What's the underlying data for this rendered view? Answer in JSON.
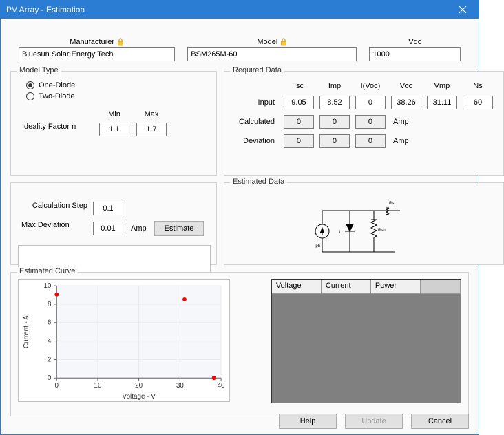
{
  "window": {
    "title": "PV Array - Estimation"
  },
  "top": {
    "manufacturer_label": "Manufacturer",
    "manufacturer": "Bluesun Solar Energy Tech",
    "model_label": "Model",
    "model": "BSM265M-60",
    "vdc_label": "Vdc",
    "vdc": "1000"
  },
  "modeltype": {
    "title": "Model Type",
    "one": "One-Diode",
    "two": "Two-Diode",
    "selected": "one",
    "min_label": "Min",
    "max_label": "Max",
    "ideality_label": "Ideality Factor n",
    "min": "1.1",
    "max": "1.7",
    "calcstep_label": "Calculation Step",
    "calcstep": "0.1",
    "maxdev_label": "Max Deviation",
    "maxdev": "0.01",
    "amp": "Amp",
    "estimate": "Estimate"
  },
  "required": {
    "title": "Required Data",
    "cols": {
      "isc": "Isc",
      "imp": "Imp",
      "ivoc": "I(Voc)",
      "voc": "Voc",
      "vmp": "Vmp",
      "ns": "Ns"
    },
    "input_label": "Input",
    "input": {
      "isc": "9.05",
      "imp": "8.52",
      "ivoc": "0",
      "voc": "38.26",
      "vmp": "31.11",
      "ns": "60"
    },
    "calc_label": "Calculated",
    "calc": {
      "isc": "0",
      "imp": "0",
      "ivoc": "0"
    },
    "dev_label": "Deviation",
    "dev": {
      "isc": "0",
      "imp": "0",
      "ivoc": "0"
    },
    "amp": "Amp"
  },
  "estdata": {
    "title": "Estimated Data",
    "labels": {
      "iph": "iph",
      "i": "i",
      "rsh": "Rsh",
      "rs": "Rs"
    }
  },
  "estcurve": {
    "title": "Estimated Curve",
    "xlabel": "Voltage - V",
    "ylabel": "Current - A",
    "xlim": [
      0,
      40
    ],
    "ylim": [
      0,
      10
    ],
    "xticks": [
      0,
      10,
      20,
      30,
      40
    ],
    "yticks": [
      0,
      2,
      4,
      6,
      8,
      10
    ],
    "points": [
      {
        "x": 0,
        "y": 9.05
      },
      {
        "x": 31.11,
        "y": 8.52
      },
      {
        "x": 38.26,
        "y": 0
      }
    ],
    "point_color": "#ff0000",
    "bg": "#f5f7fb",
    "grid_color": "#e8e8ef",
    "axis_color": "#666666",
    "label_fontsize": 10
  },
  "grid": {
    "voltage": "Voltage",
    "current": "Current",
    "power": "Power"
  },
  "footer": {
    "help": "Help",
    "update": "Update",
    "cancel": "Cancel"
  }
}
